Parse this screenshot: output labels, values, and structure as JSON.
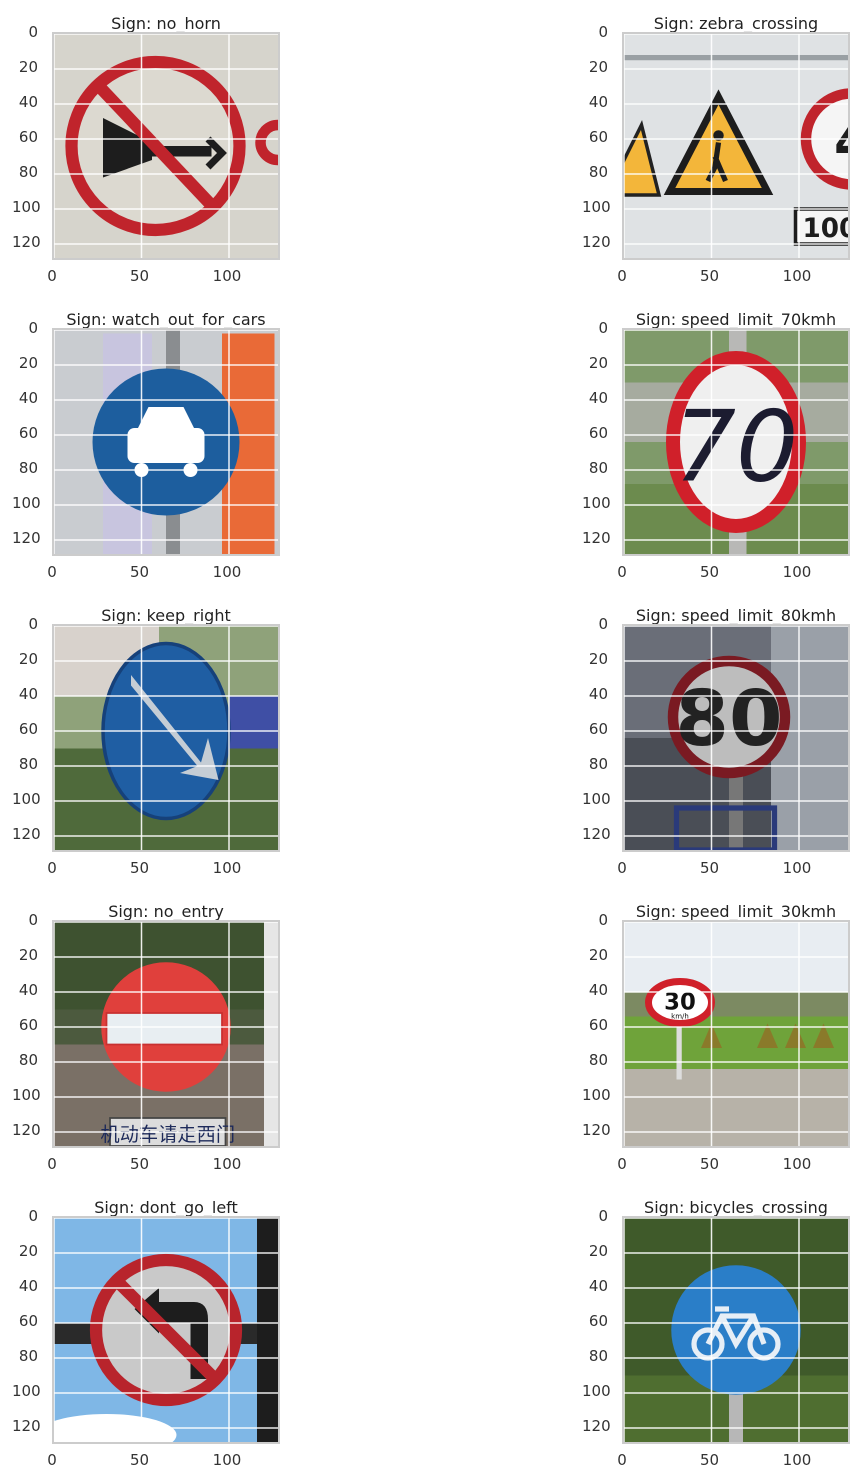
{
  "panels": [
    {
      "title": "Sign: no_horn",
      "scene": "no_horn"
    },
    {
      "title": "Sign: zebra_crossing",
      "scene": "zebra_crossing"
    },
    {
      "title": "Sign: watch_out_for_cars",
      "scene": "watch_out_for_cars"
    },
    {
      "title": "Sign: speed_limit_70kmh",
      "scene": "speed_limit_70kmh",
      "sign_text": "70"
    },
    {
      "title": "Sign: keep_right",
      "scene": "keep_right"
    },
    {
      "title": "Sign: speed_limit_80kmh",
      "scene": "speed_limit_80kmh",
      "sign_text": "80"
    },
    {
      "title": "Sign: no_entry",
      "scene": "no_entry",
      "plate_text": "机动车请走西门"
    },
    {
      "title": "Sign: speed_limit_30kmh",
      "scene": "speed_limit_30kmh",
      "sign_text": "30",
      "sign_unit": "km/h"
    },
    {
      "title": "Sign: dont_go_left",
      "scene": "dont_go_left"
    },
    {
      "title": "Sign: bicycles_crossing",
      "scene": "bicycles_crossing"
    }
  ],
  "extra_texts": {
    "zebra_plate": "100",
    "zebra_partial_sign": "4"
  },
  "y_ticks": [
    "0",
    "20",
    "40",
    "60",
    "80",
    "100",
    "120"
  ],
  "x_ticks": [
    "0",
    "50",
    "100"
  ]
}
